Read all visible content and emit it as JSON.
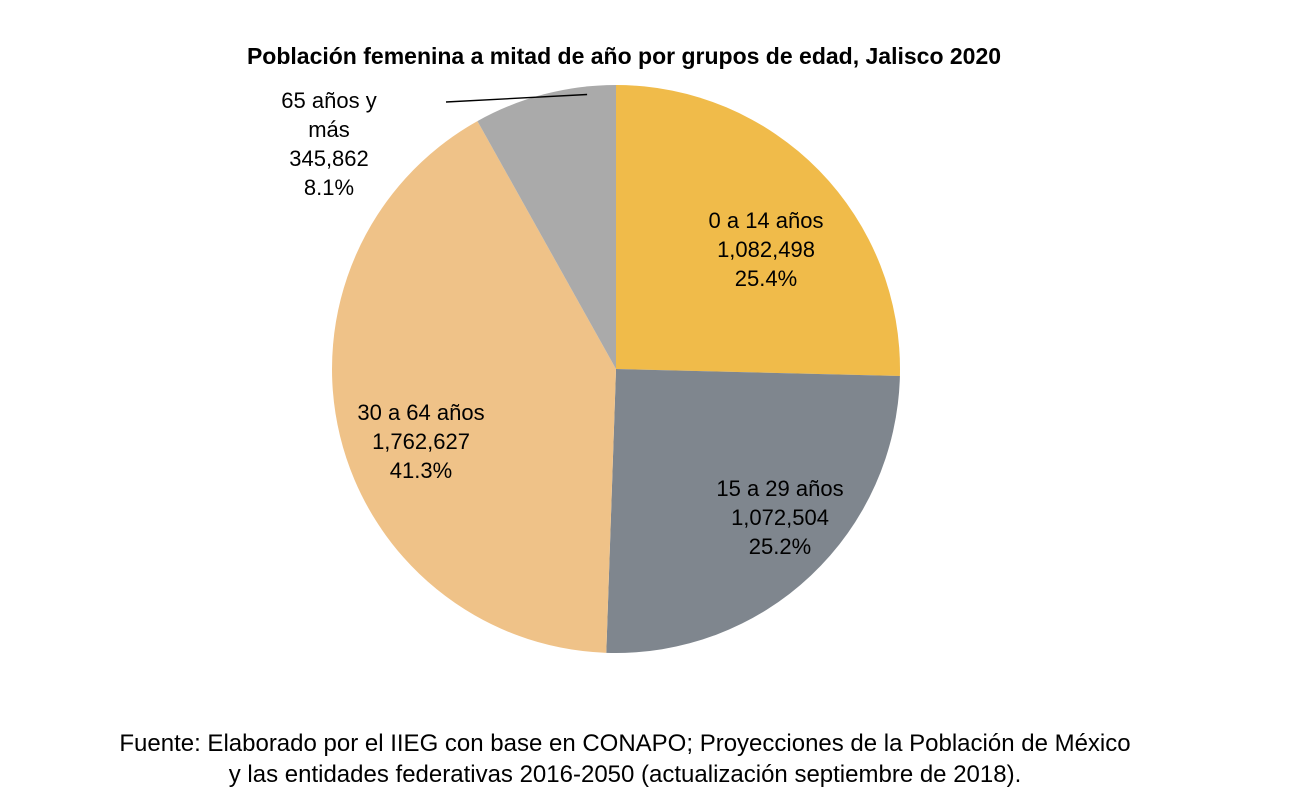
{
  "chart_data": {
    "type": "pie",
    "title": "Población femenina a mitad de año por grupos de edad, Jalisco 2020",
    "start_angle_deg": 0,
    "direction": "clockwise",
    "slices": [
      {
        "name": "0 a 14 años",
        "value": 1082498,
        "value_label": "1,082,498",
        "percent": 25.4,
        "percent_label": "25.4%",
        "color": "#F0BB4A",
        "label_lines": [
          "0 a 14 años",
          "1,082,498",
          "25.4%"
        ]
      },
      {
        "name": "15 a 29 años",
        "value": 1072504,
        "value_label": "1,072,504",
        "percent": 25.2,
        "percent_label": "25.2%",
        "color": "#7F868E",
        "label_lines": [
          "15 a 29 años",
          "1,072,504",
          "25.2%"
        ]
      },
      {
        "name": "30 a 64 años",
        "value": 1762627,
        "value_label": "1,762,627",
        "percent": 41.3,
        "percent_label": "41.3%",
        "color": "#EFC288",
        "label_lines": [
          "30 a 64 años",
          "1,762,627",
          "41.3%"
        ]
      },
      {
        "name": "65 años y más",
        "value": 345862,
        "value_label": "345,862",
        "percent": 8.1,
        "percent_label": "8.1%",
        "color": "#AAAAAA",
        "label_lines": [
          "65 años y",
          "más",
          "345,862",
          "8.1%"
        ]
      }
    ],
    "legend": "none"
  },
  "source": {
    "line1": "Fuente: Elaborado por el IIEG con base en CONAPO; Proyecciones de la Población de México",
    "line2": "y las entidades federativas 2016-2050 (actualización septiembre de 2018)."
  }
}
